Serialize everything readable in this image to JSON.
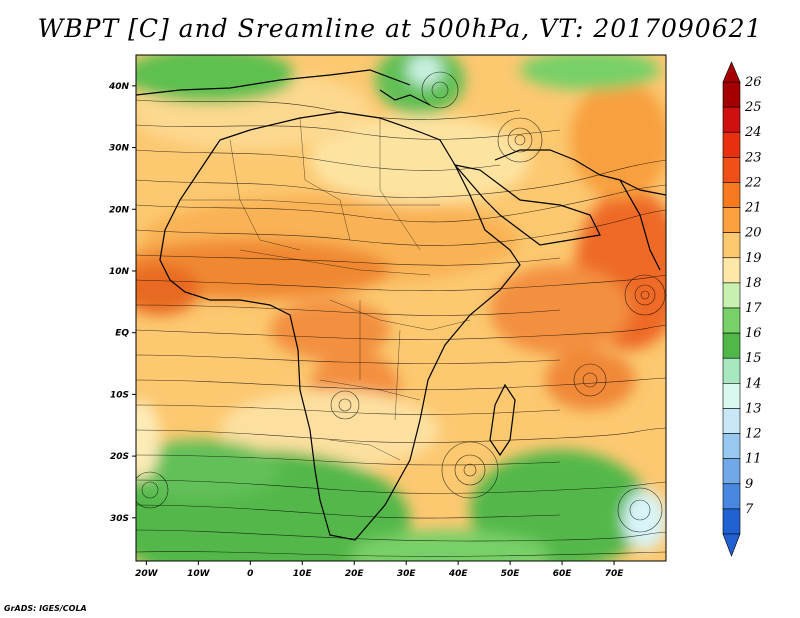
{
  "title": "WBPT [C] and Sreamline at 500hPa, VT: 2017090621",
  "credit": "GrADS: IGES/COLA",
  "map": {
    "lon_range": [
      -22,
      80
    ],
    "lat_range": [
      -37,
      45
    ],
    "x_ticks": [
      "20W",
      "10W",
      "0",
      "10E",
      "20E",
      "30E",
      "40E",
      "50E",
      "60E",
      "70E"
    ],
    "y_ticks": [
      "40N",
      "30N",
      "20N",
      "10N",
      "EQ",
      "10S",
      "20S",
      "30S"
    ]
  },
  "colorbar": {
    "levels": [
      "26",
      "25",
      "24",
      "23",
      "22",
      "21",
      "20",
      "19",
      "18",
      "17",
      "16",
      "15",
      "14",
      "13",
      "12",
      "11",
      "9",
      "7"
    ],
    "colors": [
      "#a50000",
      "#d01010",
      "#e83010",
      "#f05018",
      "#f77a20",
      "#fca040",
      "#fcc870",
      "#fde8a8",
      "#c8f0b0",
      "#78d068",
      "#50b848",
      "#a8e8c0",
      "#d8f8f0",
      "#c8e8f8",
      "#98c8f0",
      "#70a8e8",
      "#4888e0",
      "#2060d0"
    ]
  }
}
